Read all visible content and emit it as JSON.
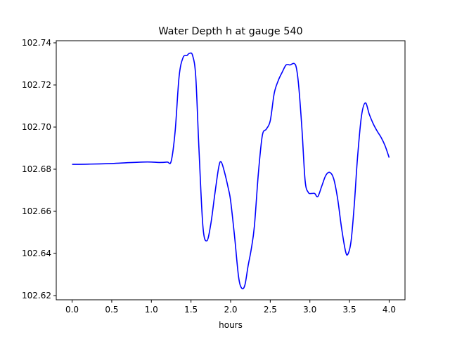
{
  "chart_data": {
    "type": "line",
    "title": "Water Depth h at gauge 540",
    "xlabel": "hours",
    "ylabel": "",
    "xlim": [
      -0.2,
      4.2
    ],
    "ylim": [
      102.618,
      102.741
    ],
    "xticks": [
      0.0,
      0.5,
      1.0,
      1.5,
      2.0,
      2.5,
      3.0,
      3.5,
      4.0
    ],
    "xtick_labels": [
      "0.0",
      "0.5",
      "1.0",
      "1.5",
      "2.0",
      "2.5",
      "3.0",
      "3.5",
      "4.0"
    ],
    "yticks": [
      102.62,
      102.64,
      102.66,
      102.68,
      102.7,
      102.72,
      102.74
    ],
    "ytick_labels": [
      "102.62",
      "102.64",
      "102.66",
      "102.68",
      "102.70",
      "102.72",
      "102.74"
    ],
    "grid": false,
    "series": [
      {
        "color": "#0000ff",
        "x": [
          0.0,
          0.2,
          0.5,
          0.7,
          0.9,
          1.0,
          1.1,
          1.2,
          1.25,
          1.3,
          1.35,
          1.4,
          1.45,
          1.48,
          1.52,
          1.56,
          1.6,
          1.65,
          1.7,
          1.75,
          1.8,
          1.85,
          1.88,
          1.92,
          1.97,
          2.0,
          2.05,
          2.1,
          2.14,
          2.18,
          2.22,
          2.26,
          2.3,
          2.35,
          2.4,
          2.45,
          2.5,
          2.55,
          2.6,
          2.65,
          2.7,
          2.75,
          2.8,
          2.83,
          2.86,
          2.9,
          2.94,
          2.98,
          3.02,
          3.06,
          3.1,
          3.15,
          3.2,
          3.25,
          3.3,
          3.35,
          3.4,
          3.45,
          3.48,
          3.52,
          3.56,
          3.6,
          3.65,
          3.7,
          3.75,
          3.8,
          3.85,
          3.9,
          3.95,
          4.0
        ],
        "y": [
          102.6823,
          102.6824,
          102.6827,
          102.6831,
          102.6834,
          102.6834,
          102.6832,
          102.6834,
          102.6838,
          102.698,
          102.724,
          102.733,
          102.734,
          102.735,
          102.734,
          102.724,
          102.69,
          102.653,
          102.646,
          102.654,
          102.668,
          102.681,
          102.6835,
          102.679,
          102.671,
          102.665,
          102.648,
          102.629,
          102.6235,
          102.625,
          102.634,
          102.642,
          102.653,
          102.678,
          102.696,
          102.699,
          102.703,
          102.716,
          102.722,
          102.726,
          102.7295,
          102.7295,
          102.7302,
          102.728,
          102.719,
          102.699,
          102.6745,
          102.669,
          102.6685,
          102.6685,
          102.667,
          102.672,
          102.677,
          102.6785,
          102.6755,
          102.666,
          102.652,
          102.641,
          102.6397,
          102.646,
          102.663,
          102.685,
          102.705,
          102.7115,
          102.706,
          102.7015,
          102.698,
          102.695,
          102.691,
          102.6855
        ]
      }
    ]
  }
}
